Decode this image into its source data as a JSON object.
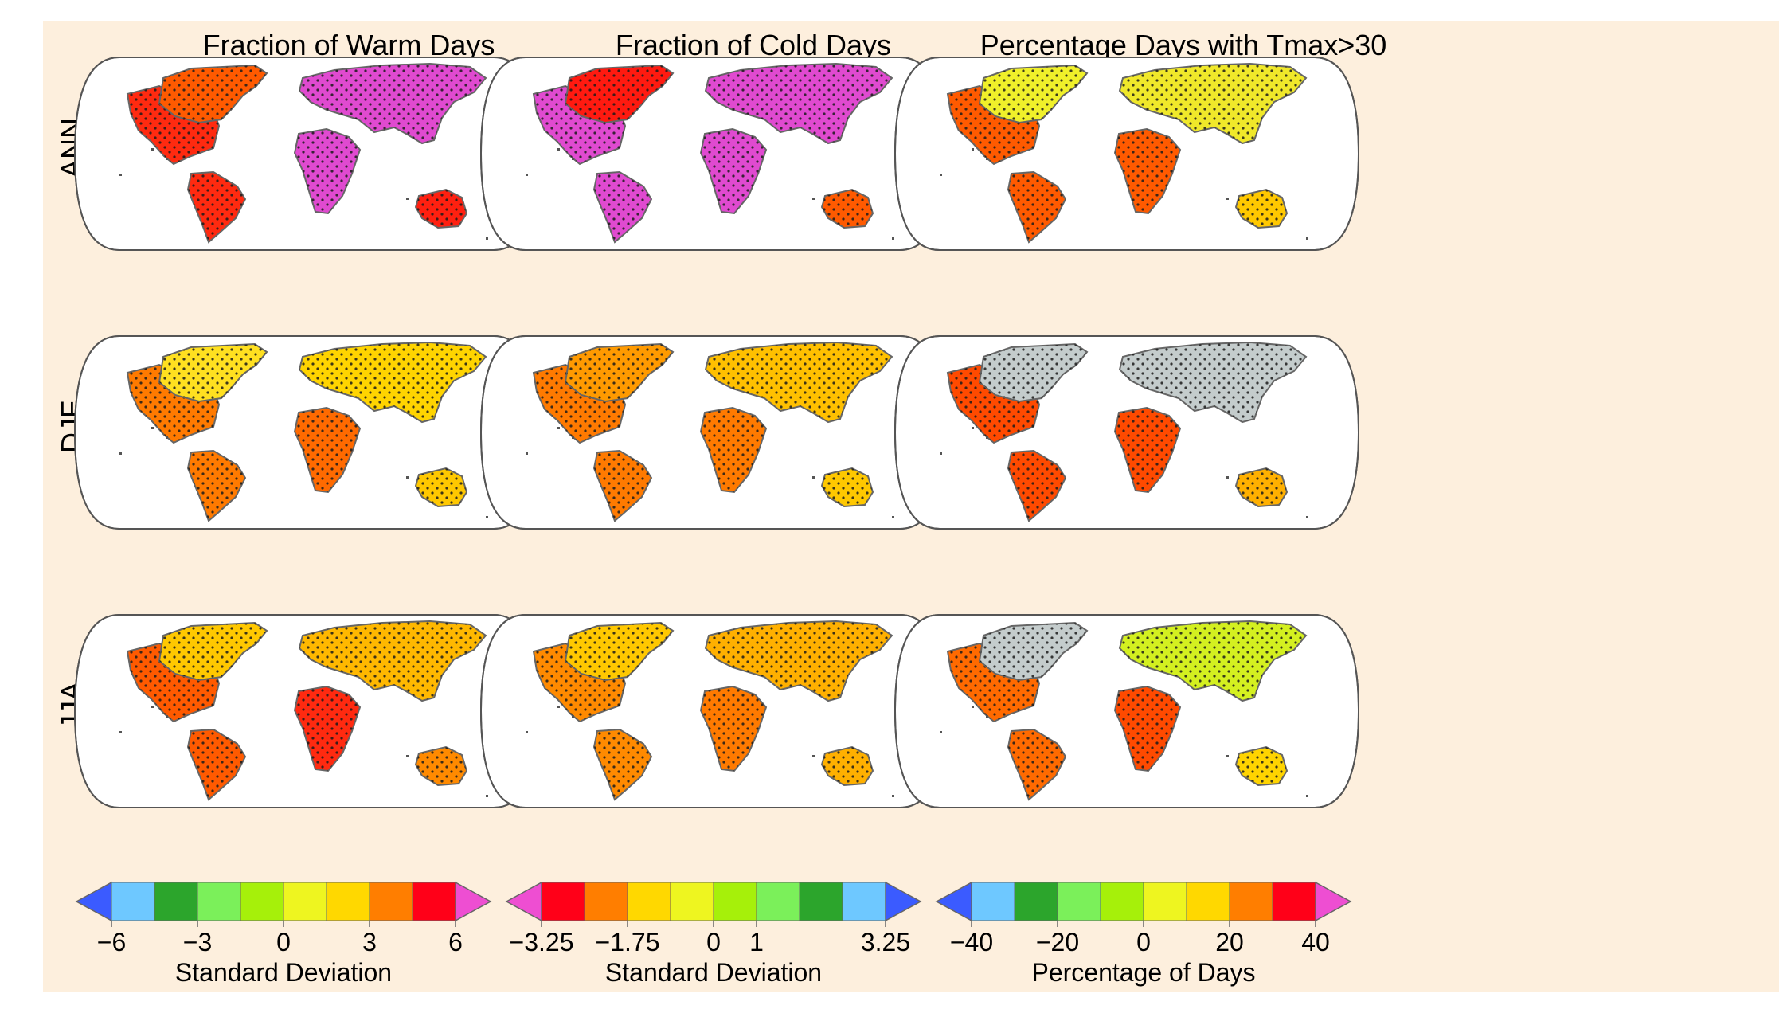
{
  "columns": [
    {
      "title": "Fraction of Warm Days"
    },
    {
      "title": "Fraction of Cold Days"
    },
    {
      "title": "Percentage Days with Tmax>30"
    }
  ],
  "rows": [
    {
      "label": "ANN"
    },
    {
      "label": "DJF"
    },
    {
      "label": "JJA"
    }
  ],
  "colorbars": [
    {
      "title": "Standard Deviation",
      "colors": [
        "#3b5bff",
        "#6ec8ff",
        "#2ca52c",
        "#7bf05a",
        "#a6f00a",
        "#eef520",
        "#ffd800",
        "#ff7e00",
        "#ff0018",
        "#ee4ed2"
      ],
      "tick_labels": [
        "−6",
        "−3",
        "0",
        "3",
        "6"
      ],
      "tick_boundaries": [
        1,
        3,
        5,
        7,
        9
      ]
    },
    {
      "title": "Standard Deviation",
      "colors": [
        "#ee4ed2",
        "#ff0018",
        "#ff7e00",
        "#ffd800",
        "#eef520",
        "#a6f00a",
        "#7bf05a",
        "#2ca52c",
        "#6ec8ff",
        "#3b5bff"
      ],
      "tick_labels": [
        "−3.25",
        "−1.75",
        "0",
        "1",
        "3.25"
      ],
      "tick_boundaries": [
        1,
        3,
        5,
        6,
        9
      ]
    },
    {
      "title": "Percentage of Days",
      "colors": [
        "#3b5bff",
        "#6ec8ff",
        "#2ca52c",
        "#7bf05a",
        "#a6f00a",
        "#eef520",
        "#ffd800",
        "#ff7e00",
        "#ff0018",
        "#ee4ed2"
      ],
      "tick_labels": [
        "−40",
        "−20",
        "0",
        "20",
        "40"
      ],
      "tick_boundaries": [
        1,
        3,
        5,
        7,
        9
      ]
    }
  ],
  "panels": [
    {
      "row": "ANN",
      "col": 0,
      "americas": "#ff2a10",
      "eurasia": "#e04ad0",
      "africa": "#e04ad0",
      "australia": "#ff2010",
      "north": "#ff5a00"
    },
    {
      "row": "ANN",
      "col": 1,
      "americas": "#e04ad0",
      "eurasia": "#e04ad0",
      "africa": "#e04ad0",
      "australia": "#ff5a00",
      "north": "#ff1a10"
    },
    {
      "row": "ANN",
      "col": 2,
      "americas": "#ff5a00",
      "eurasia": "#f0e82a",
      "africa": "#ff5a00",
      "australia": "#ffc800",
      "north": "#f0f02a"
    },
    {
      "row": "DJF",
      "col": 0,
      "americas": "#ff7a00",
      "eurasia": "#ffd400",
      "africa": "#ff6a00",
      "australia": "#ffc800",
      "north": "#ffe020"
    },
    {
      "row": "DJF",
      "col": 1,
      "americas": "#ff7a00",
      "eurasia": "#ffc000",
      "africa": "#ff7a00",
      "australia": "#ffc800",
      "north": "#ff9a00"
    },
    {
      "row": "DJF",
      "col": 2,
      "americas": "#ff4a00",
      "eurasia": "#c4cccc",
      "africa": "#ff4a00",
      "australia": "#ffb000",
      "north": "#c4cccc"
    },
    {
      "row": "JJA",
      "col": 0,
      "americas": "#ff5a00",
      "eurasia": "#ffb800",
      "africa": "#ff2a10",
      "australia": "#ff8a00",
      "north": "#ffc800"
    },
    {
      "row": "JJA",
      "col": 1,
      "americas": "#ff8a00",
      "eurasia": "#ffb000",
      "africa": "#ff7a00",
      "australia": "#ffb000",
      "north": "#ffc800"
    },
    {
      "row": "JJA",
      "col": 2,
      "americas": "#ff6a00",
      "eurasia": "#d4f020",
      "africa": "#ff4a00",
      "australia": "#ffd400",
      "north": "#c4cccc"
    }
  ]
}
